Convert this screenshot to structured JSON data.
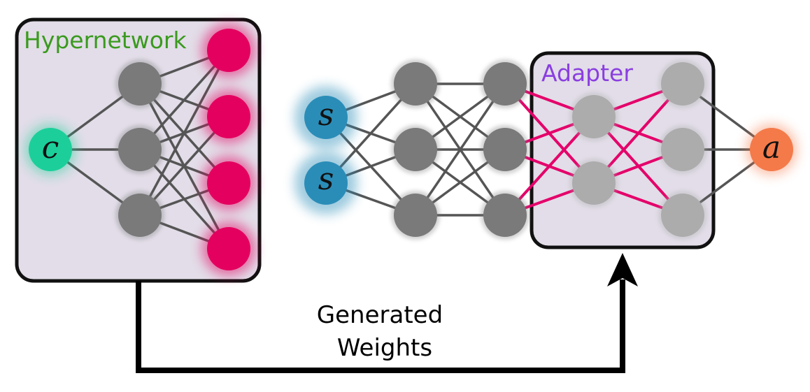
{
  "hypernetwork": {
    "label": "Hypernetwork",
    "label_color": "#3a9a1e",
    "input_label": "c"
  },
  "adapter": {
    "label": "Adapter",
    "label_color": "#8a3ee0"
  },
  "policy": {
    "state_label_1": "s",
    "state_label_2": "s",
    "action_label": "a"
  },
  "caption": {
    "line1": "Generated",
    "line2": "Weights"
  },
  "colors": {
    "box_fill": "#e2dde8",
    "box_stroke": "#111111",
    "hidden_node": "#7a7a7a",
    "adapter_node": "#acacac",
    "output_node": "#e4005f",
    "input_c": "#1ccf9a",
    "input_s": "#2a8db8",
    "action_a": "#f47a4a",
    "edge": "#555555",
    "generated_edge": "#e4006a"
  }
}
